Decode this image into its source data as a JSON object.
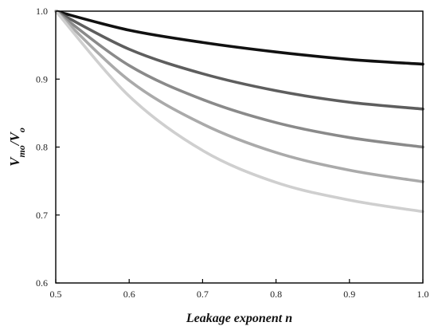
{
  "chart_data": {
    "type": "line",
    "xlabel": "Leakage exponent n",
    "ylabel_parts": {
      "v1": "V",
      "sub1": "mo",
      "slash": "/",
      "v2": "V",
      "sub2": "o"
    },
    "xlim": [
      0.5,
      1.0
    ],
    "ylim": [
      0.6,
      1.0
    ],
    "x_ticks": [
      "0.5",
      "0.6",
      "0.7",
      "0.8",
      "0.9",
      "1.0"
    ],
    "y_ticks": [
      "0.6",
      "0.7",
      "0.8",
      "0.9",
      "1.0"
    ],
    "grid": false,
    "series": [
      {
        "color": "#111111",
        "x": [
          0.5,
          0.6,
          0.7,
          0.8,
          0.9,
          1.0
        ],
        "values": [
          1.0,
          0.972,
          0.954,
          0.94,
          0.929,
          0.922
        ]
      },
      {
        "color": "#5e5e5e",
        "x": [
          0.5,
          0.6,
          0.7,
          0.8,
          0.9,
          1.0
        ],
        "values": [
          1.0,
          0.944,
          0.908,
          0.883,
          0.866,
          0.856
        ]
      },
      {
        "color": "#8a8a8a",
        "x": [
          0.5,
          0.6,
          0.7,
          0.8,
          0.9,
          1.0
        ],
        "values": [
          1.0,
          0.92,
          0.87,
          0.836,
          0.814,
          0.8
        ]
      },
      {
        "color": "#aaaaaa",
        "x": [
          0.5,
          0.6,
          0.7,
          0.8,
          0.9,
          1.0
        ],
        "values": [
          1.0,
          0.898,
          0.834,
          0.792,
          0.766,
          0.749
        ]
      },
      {
        "color": "#cfcfcf",
        "x": [
          0.5,
          0.6,
          0.7,
          0.8,
          0.9,
          1.0
        ],
        "values": [
          1.0,
          0.875,
          0.795,
          0.748,
          0.722,
          0.705
        ]
      }
    ]
  }
}
